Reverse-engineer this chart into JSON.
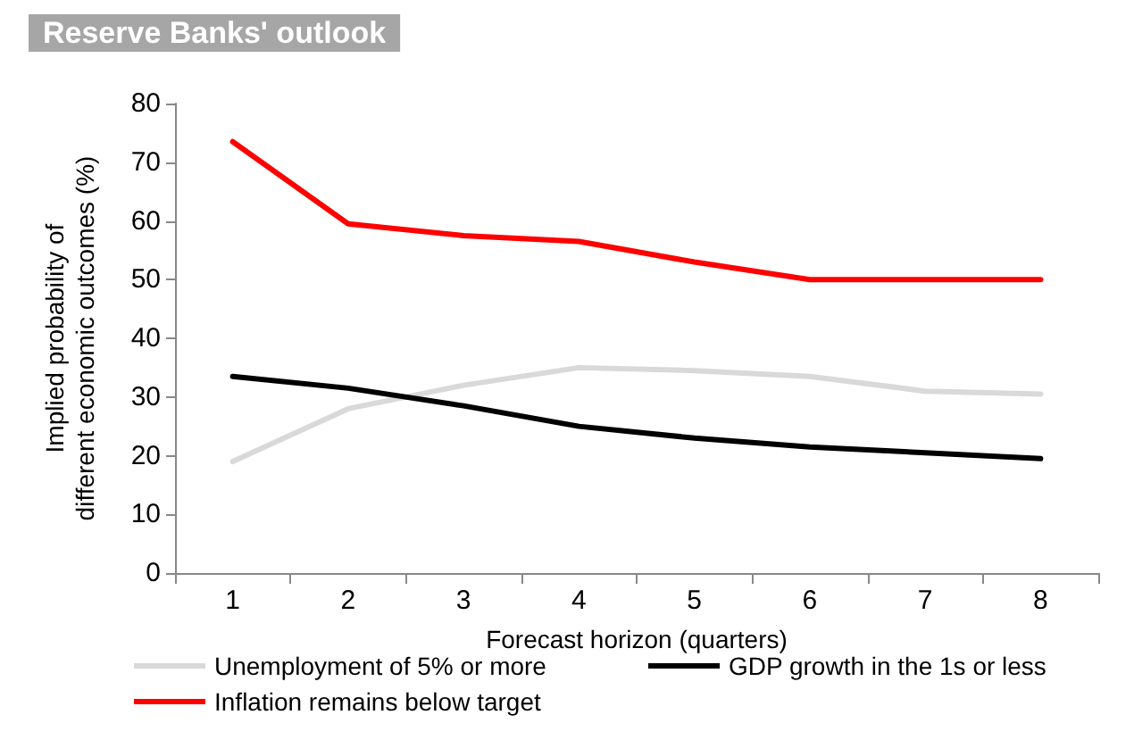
{
  "chart_data": {
    "type": "line",
    "title": "Reserve Banks' outlook",
    "xlabel": "Forecast horizon (quarters)",
    "ylabel": "Implied probability of different economic outcomes (%)",
    "categories": [
      "1",
      "2",
      "3",
      "4",
      "5",
      "6",
      "7",
      "8"
    ],
    "series": [
      {
        "name": "Unemployment of 5% or more",
        "color": "#d9d9d9",
        "values": [
          19,
          28,
          32,
          35,
          34.5,
          33.5,
          31,
          30.5
        ]
      },
      {
        "name": "GDP growth in the 1s or less",
        "color": "#000000",
        "values": [
          33.5,
          31.5,
          28.5,
          25,
          23,
          21.5,
          20.5,
          19.5
        ]
      },
      {
        "name": "Inflation remains below target",
        "color": "#ff0000",
        "values": [
          73.5,
          59.5,
          57.5,
          56.5,
          53,
          50,
          50,
          50
        ]
      }
    ],
    "ylim": [
      0,
      80
    ],
    "yticks": [
      0,
      10,
      20,
      30,
      40,
      50,
      60,
      70,
      80
    ],
    "grid": false,
    "legend": "bottom",
    "marker": "none",
    "line_style": "solid"
  }
}
